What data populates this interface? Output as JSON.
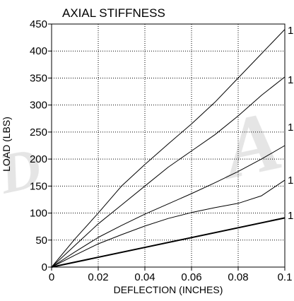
{
  "chart_data": {
    "type": "line",
    "title": "AXIAL STIFFNESS",
    "xlabel": "DEFLECTION (INCHES)",
    "ylabel": "LOAD (LBS)",
    "xlim": [
      0,
      0.1
    ],
    "ylim": [
      0,
      450
    ],
    "x_ticks": [
      "0",
      "0.02",
      "0.04",
      "0.06",
      "0.08",
      "0.1"
    ],
    "y_ticks": [
      "0",
      "50",
      "100",
      "150",
      "200",
      "250",
      "300",
      "350",
      "400",
      "450"
    ],
    "grid": true,
    "grid_style": "dotted",
    "series": [
      {
        "x": [
          0,
          0.01,
          0.02,
          0.03,
          0.04,
          0.05,
          0.06,
          0.07,
          0.08,
          0.09,
          0.1
        ],
        "y": [
          0,
          52,
          100,
          150,
          190,
          228,
          265,
          305,
          350,
          395,
          440
        ]
      },
      {
        "x": [
          0,
          0.01,
          0.02,
          0.03,
          0.04,
          0.05,
          0.06,
          0.07,
          0.08,
          0.09,
          0.1
        ],
        "y": [
          0,
          40,
          80,
          115,
          150,
          185,
          215,
          245,
          280,
          318,
          352
        ]
      },
      {
        "x": [
          0,
          0.01,
          0.02,
          0.03,
          0.04,
          0.05,
          0.06,
          0.07,
          0.08,
          0.09,
          0.1
        ],
        "y": [
          0,
          28,
          55,
          77,
          98,
          117,
          136,
          156,
          177,
          200,
          225
        ]
      },
      {
        "x": [
          0,
          0.01,
          0.02,
          0.03,
          0.04,
          0.05,
          0.06,
          0.07,
          0.08,
          0.09,
          0.1
        ],
        "y": [
          0,
          22,
          43,
          60,
          76,
          90,
          101,
          110,
          118,
          132,
          161
        ]
      },
      {
        "x": [
          0,
          0.1
        ],
        "y": [
          0,
          91
        ],
        "stroke_width": 2
      }
    ],
    "colors": {
      "line": "#000000",
      "grid": "#000000",
      "watermark": "#cfcfcf"
    }
  }
}
